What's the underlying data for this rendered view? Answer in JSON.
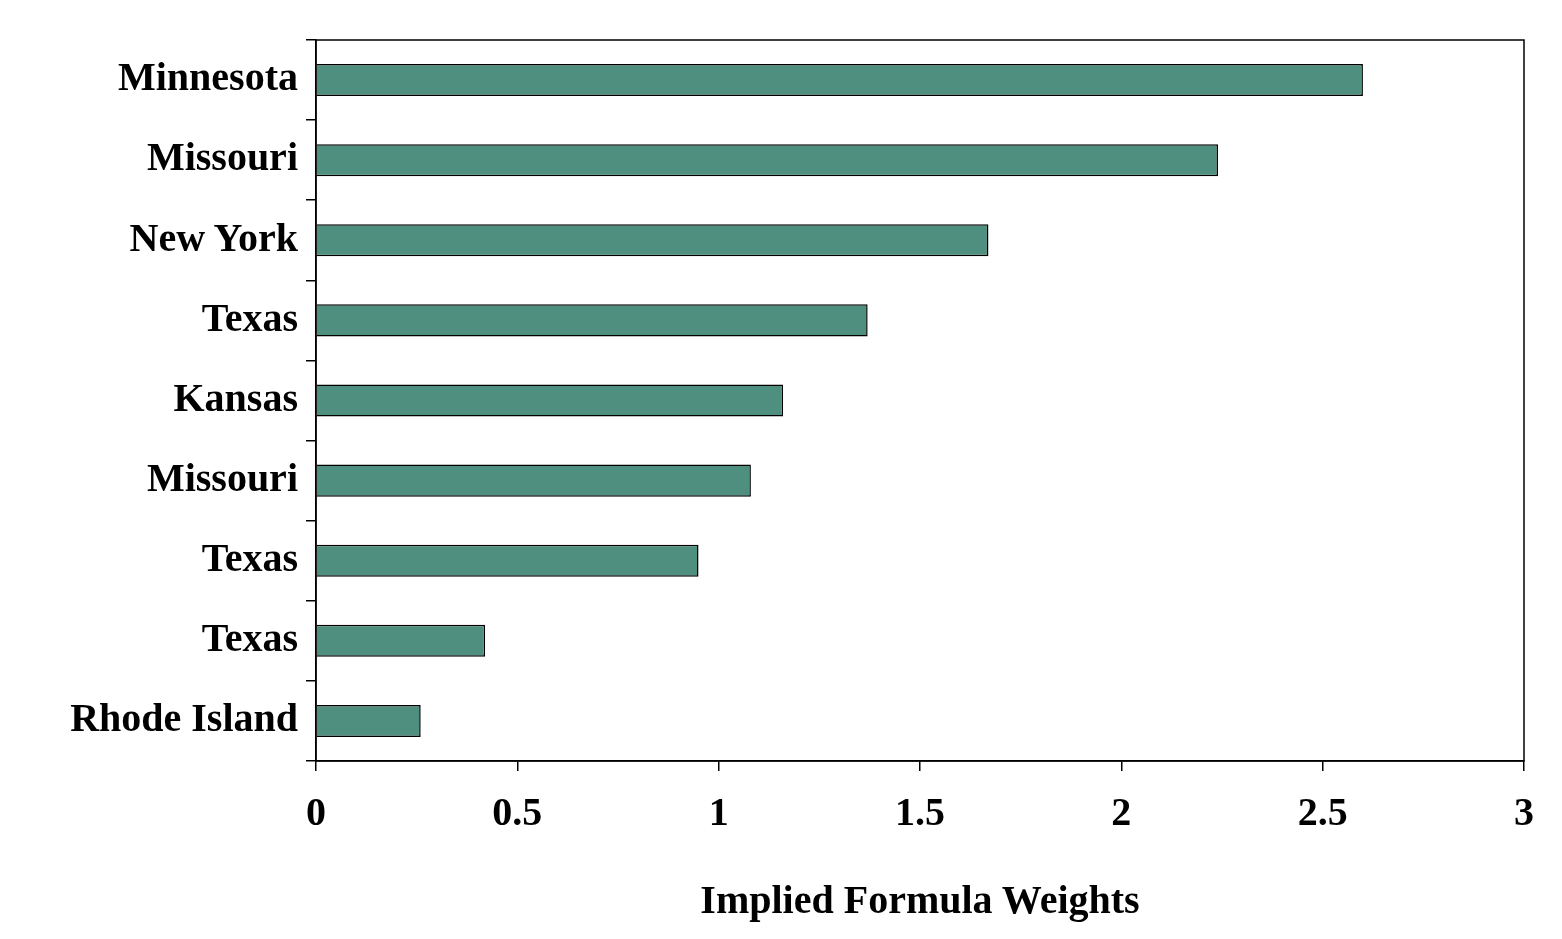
{
  "chart_data": {
    "type": "bar",
    "orientation": "horizontal",
    "xlabel": "Implied Formula Weights",
    "categories": [
      "Minnesota",
      "Missouri",
      "New York",
      "Texas",
      "Kansas",
      "Missouri",
      "Texas",
      "Texas",
      "Rhode Island"
    ],
    "values": [
      2.6,
      2.24,
      1.67,
      1.37,
      1.16,
      1.08,
      0.95,
      0.42,
      0.26
    ],
    "color": "#4f8f7f",
    "xlim": [
      0,
      3
    ],
    "xticks": [
      0,
      0.5,
      1,
      1.5,
      2,
      2.5,
      3
    ],
    "grid": false,
    "legend": false
  }
}
